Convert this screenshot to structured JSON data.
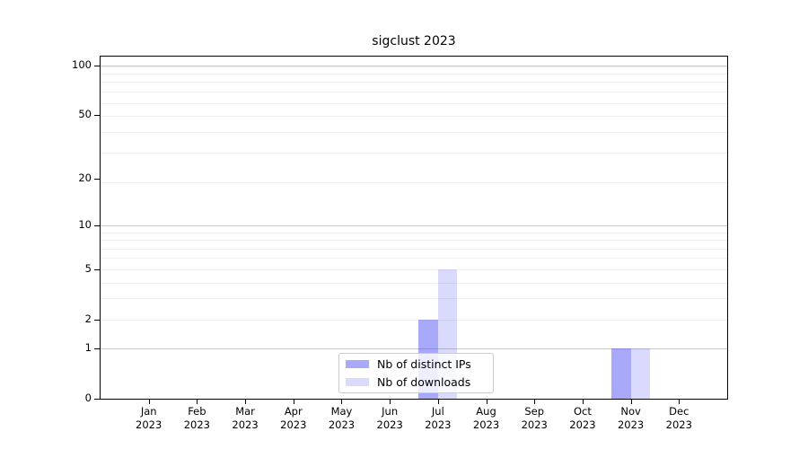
{
  "title": "sigclust 2023",
  "colors": {
    "ips": "rgba(80,80,245,0.49)",
    "downloads": "rgba(80,80,245,0.21)",
    "ips_hex_on_white": "#aaaafa",
    "downloads_hex_on_white": "#dbdbfa",
    "grid_major": "#c9c9c9",
    "grid_minor": "#efefef",
    "spine": "#000000",
    "text": "#000000"
  },
  "legend": {
    "items": [
      {
        "label": "Nb of distinct IPs"
      },
      {
        "label": "Nb of downloads"
      }
    ]
  },
  "chart_data": {
    "type": "bar",
    "title": "sigclust 2023",
    "categories": [
      "Jan",
      "Feb",
      "Mar",
      "Apr",
      "May",
      "Jun",
      "Jul",
      "Aug",
      "Sep",
      "Oct",
      "Nov",
      "Dec"
    ],
    "year": "2023",
    "x_tick_labels": [
      "Jan 2023",
      "Feb 2023",
      "Mar 2023",
      "Apr 2023",
      "May 2023",
      "Jun 2023",
      "Jul 2023",
      "Aug 2023",
      "Sep 2023",
      "Oct 2023",
      "Nov 2023",
      "Dec 2023"
    ],
    "series": [
      {
        "name": "Nb of distinct IPs",
        "values": [
          0,
          0,
          0,
          0,
          0,
          0,
          2,
          0,
          0,
          0,
          1,
          0
        ]
      },
      {
        "name": "Nb of downloads",
        "values": [
          0,
          0,
          0,
          0,
          0,
          0,
          5,
          0,
          0,
          0,
          1,
          0
        ]
      }
    ],
    "xlabel": "",
    "ylabel": "",
    "yscale": "log1p",
    "y_ticks": [
      0,
      1,
      2,
      5,
      10,
      20,
      50,
      100
    ],
    "y_major_gridlines": [
      1,
      10,
      100
    ],
    "y_minor_gridlines": [
      2,
      3,
      4,
      5,
      6,
      7,
      8,
      9,
      19,
      29,
      39,
      49,
      59,
      69,
      79,
      89,
      99
    ],
    "ylim": [
      0,
      113
    ],
    "grid": true,
    "legend_position": "lower center"
  }
}
